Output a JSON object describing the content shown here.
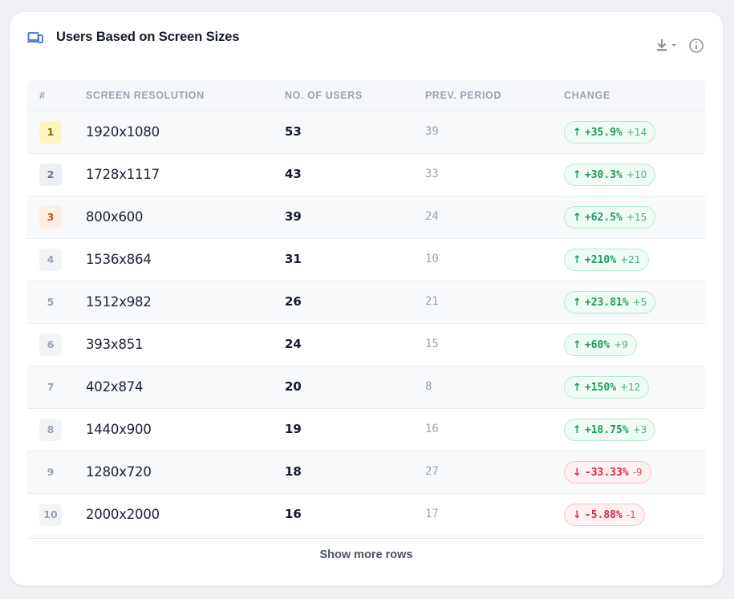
{
  "header": {
    "title": "Users Based on Screen Sizes",
    "icon": "devices-icon",
    "accent": "#3b6fe0"
  },
  "toolbar": {
    "download_icon": "download-icon",
    "info_icon": "info-icon"
  },
  "table": {
    "columns": [
      "#",
      "SCREEN RESOLUTION",
      "NO. OF USERS",
      "PREV. PERIOD",
      "CHANGE"
    ],
    "rows": [
      {
        "rank": "1",
        "resolution": "1920x1080",
        "users": "53",
        "prev": "39",
        "direction": "up",
        "change": "+35.9%",
        "delta": "+14"
      },
      {
        "rank": "2",
        "resolution": "1728x1117",
        "users": "43",
        "prev": "33",
        "direction": "up",
        "change": "+30.3%",
        "delta": "+10"
      },
      {
        "rank": "3",
        "resolution": "800x600",
        "users": "39",
        "prev": "24",
        "direction": "up",
        "change": "+62.5%",
        "delta": "+15"
      },
      {
        "rank": "4",
        "resolution": "1536x864",
        "users": "31",
        "prev": "10",
        "direction": "up",
        "change": "+210%",
        "delta": "+21"
      },
      {
        "rank": "5",
        "resolution": "1512x982",
        "users": "26",
        "prev": "21",
        "direction": "up",
        "change": "+23.81%",
        "delta": "+5"
      },
      {
        "rank": "6",
        "resolution": "393x851",
        "users": "24",
        "prev": "15",
        "direction": "up",
        "change": "+60%",
        "delta": "+9"
      },
      {
        "rank": "7",
        "resolution": "402x874",
        "users": "20",
        "prev": "8",
        "direction": "up",
        "change": "+150%",
        "delta": "+12"
      },
      {
        "rank": "8",
        "resolution": "1440x900",
        "users": "19",
        "prev": "16",
        "direction": "up",
        "change": "+18.75%",
        "delta": "+3"
      },
      {
        "rank": "9",
        "resolution": "1280x720",
        "users": "18",
        "prev": "27",
        "direction": "down",
        "change": "-33.33%",
        "delta": "-9"
      },
      {
        "rank": "10",
        "resolution": "2000x2000",
        "users": "16",
        "prev": "17",
        "direction": "down",
        "change": "-5.88%",
        "delta": "-1"
      }
    ]
  },
  "footer": {
    "show_more_label": "Show more rows"
  },
  "colors": {
    "up": "#1c9a5c",
    "down": "#d8283f"
  }
}
